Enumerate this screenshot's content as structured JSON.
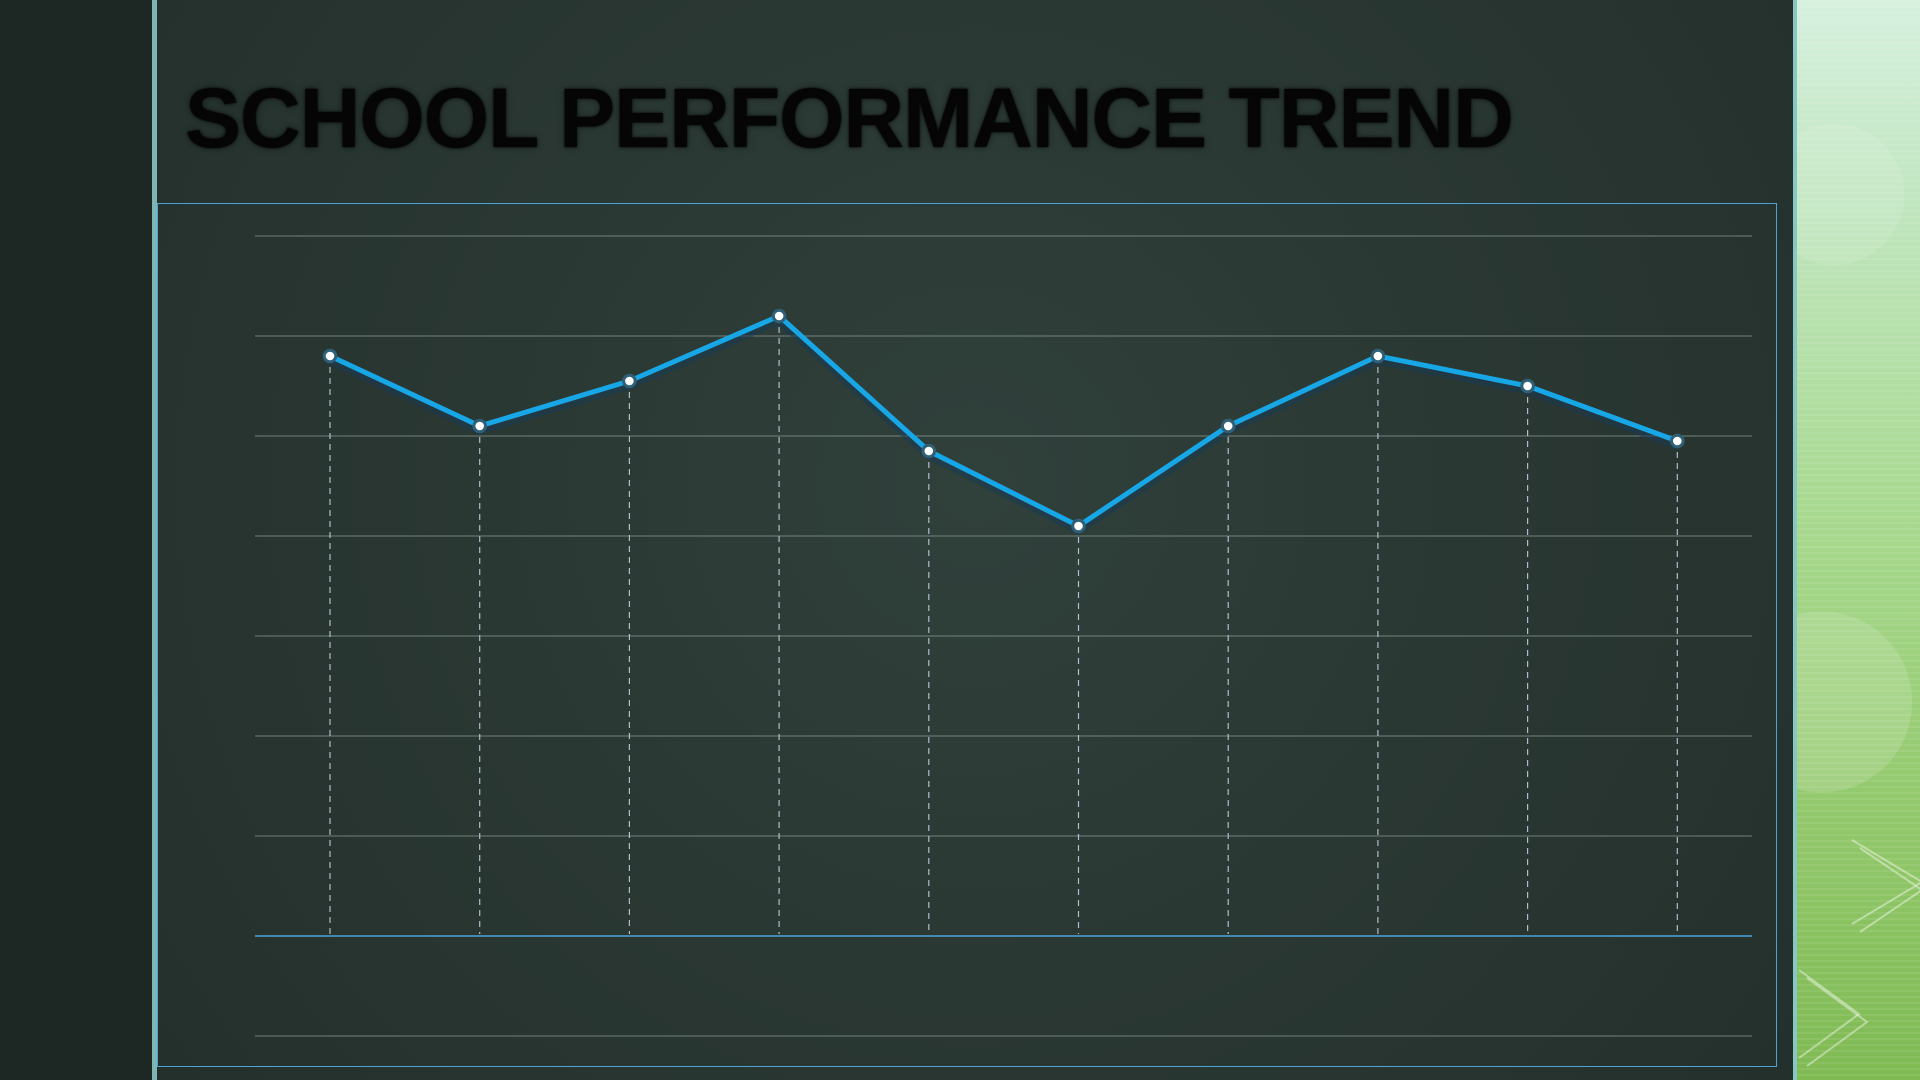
{
  "slide": {
    "title": "SCHOOL PERFORMANCE TREND"
  },
  "colors": {
    "background": "#1f2a27",
    "panel": "#2b3934",
    "accent_left": "#7fb6b3",
    "right_band": "#a8d98f",
    "line": "#18a7e6",
    "grid": "#7f8f88",
    "baseline": "#4fa2d8"
  },
  "chart_data": {
    "type": "line",
    "x": [
      1,
      2,
      3,
      4,
      5,
      6,
      7,
      8,
      9,
      10
    ],
    "series": [
      {
        "values": [
          5.8,
          5.1,
          5.55,
          6.2,
          4.85,
          4.1,
          5.1,
          5.8,
          5.5,
          4.95
        ]
      }
    ],
    "ylim": [
      0,
      7
    ],
    "grid": true,
    "legend": "none"
  }
}
